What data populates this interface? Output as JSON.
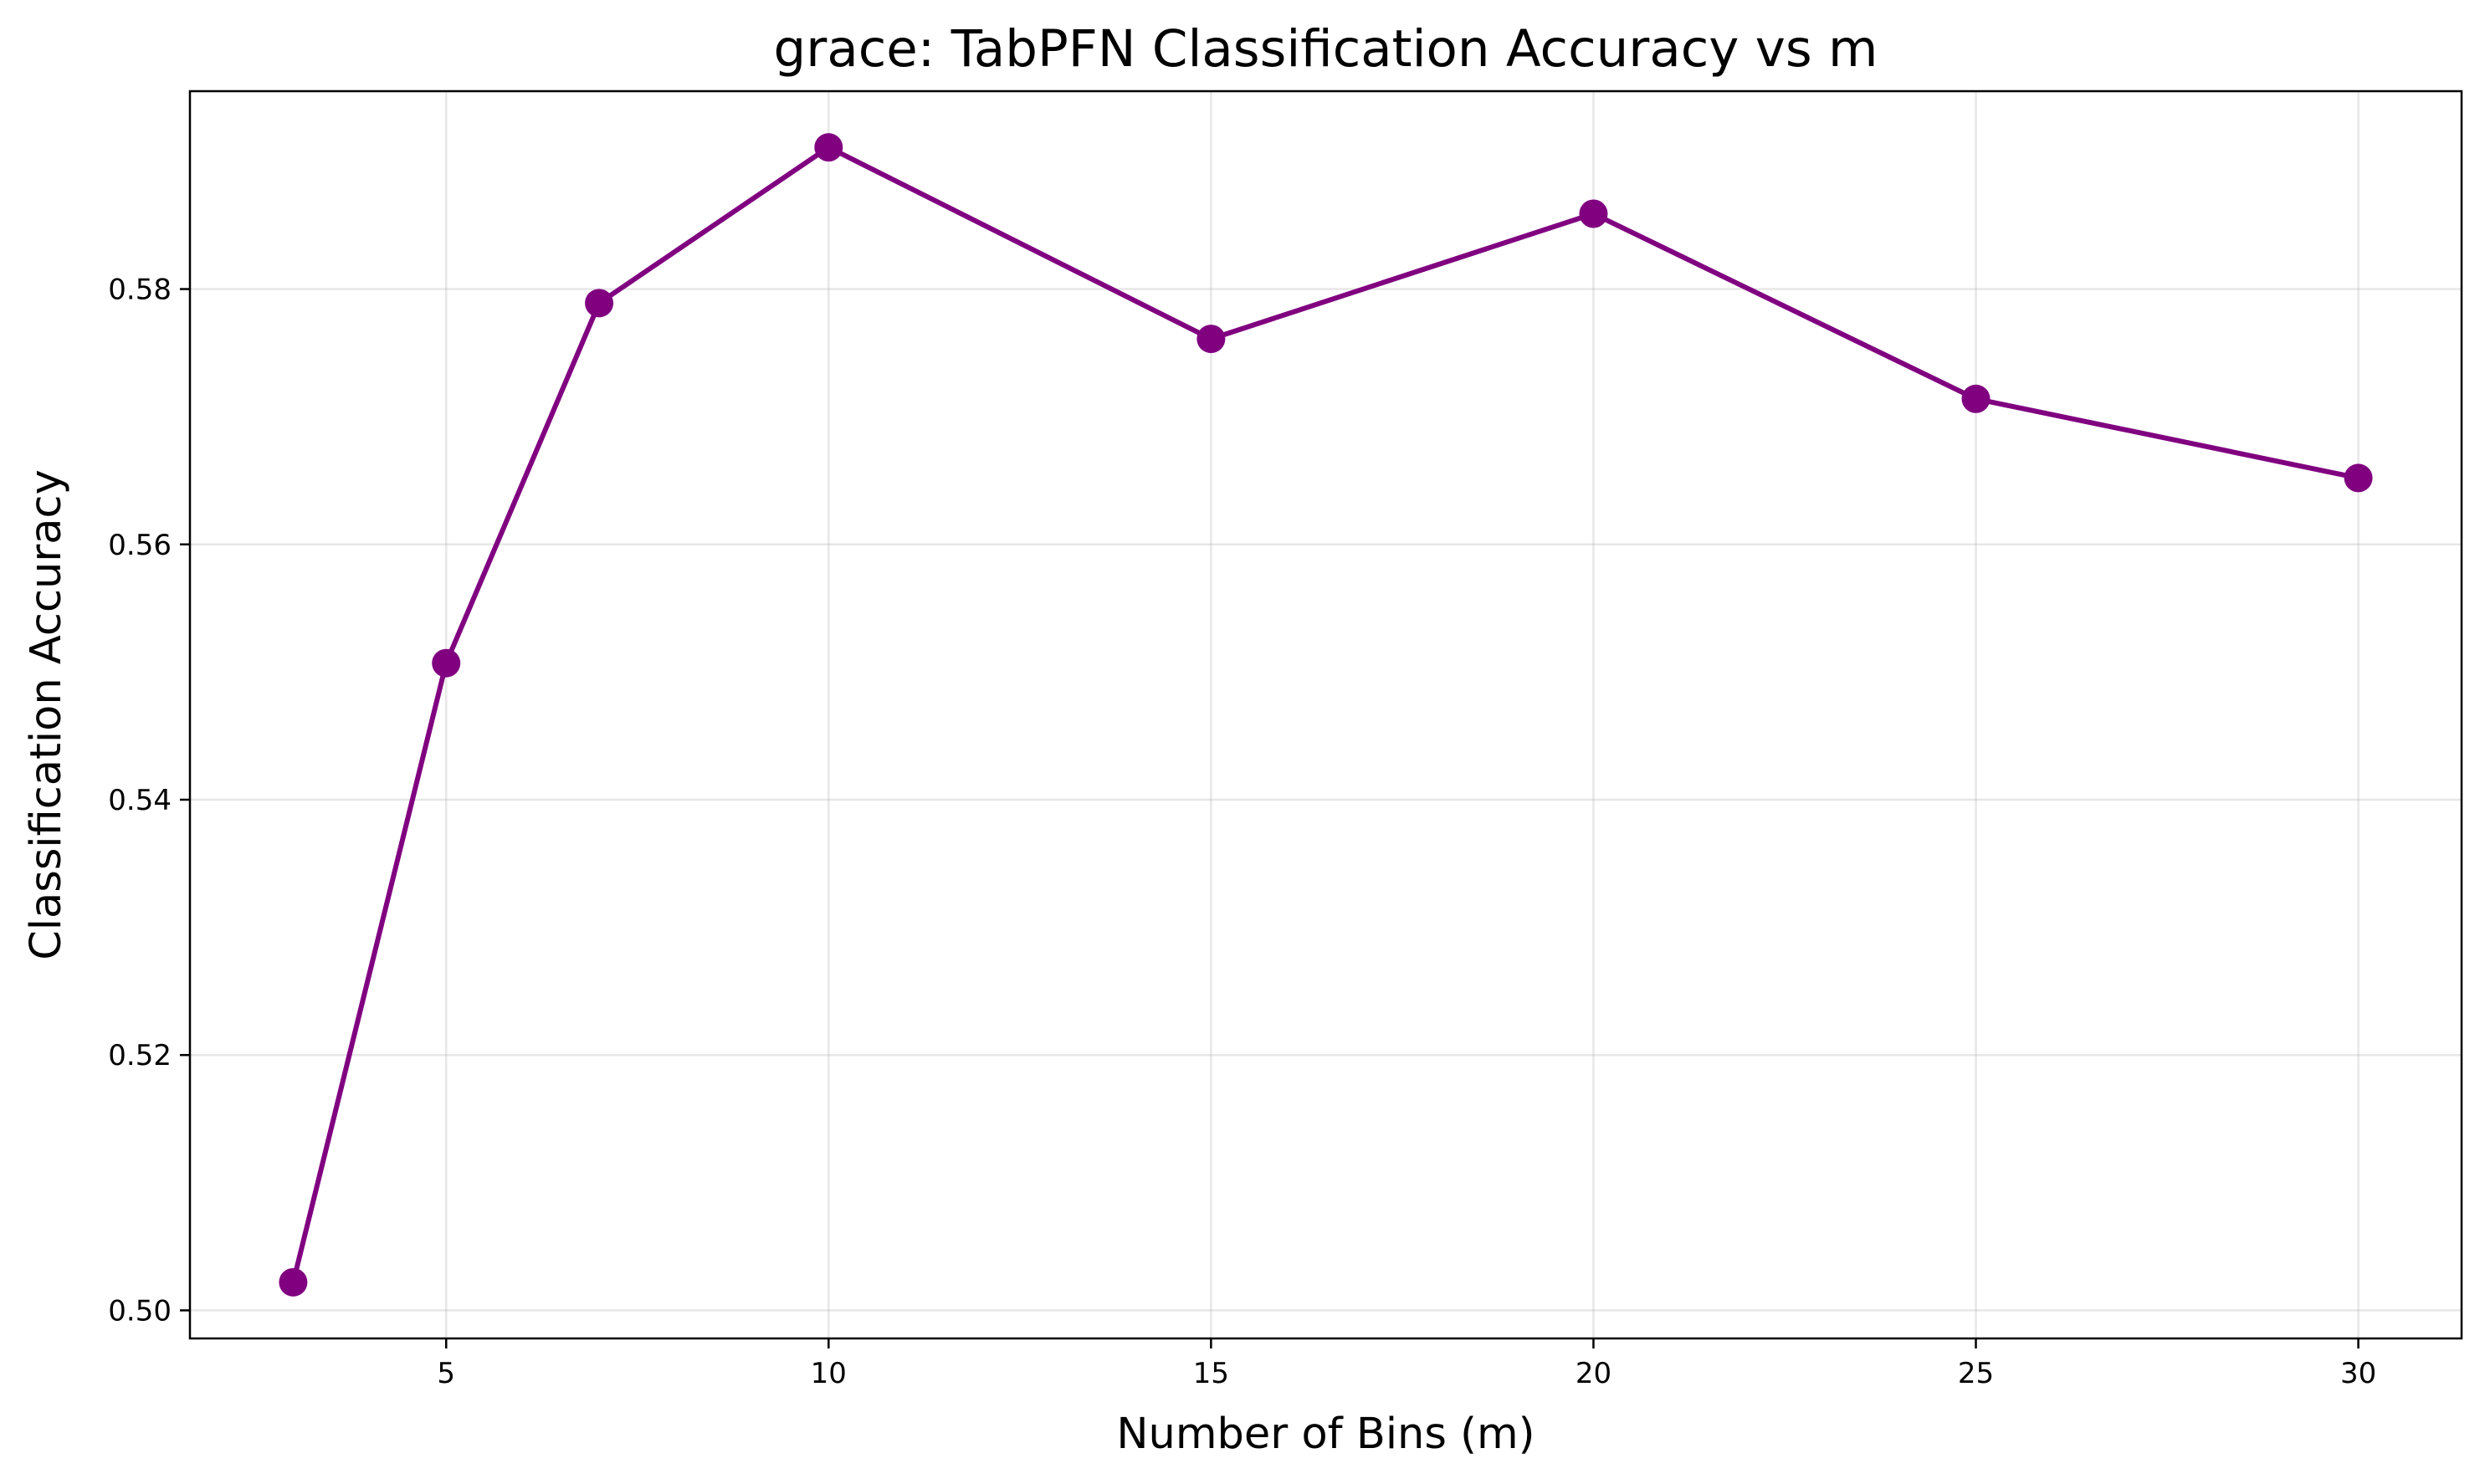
{
  "chart_data": {
    "type": "line",
    "title": "grace: TabPFN Classification Accuracy vs m",
    "xlabel": "Number of Bins (m)",
    "ylabel": "Classification Accuracy",
    "xlim": [
      1.65,
      31.35
    ],
    "ylim": [
      0.4978,
      0.5955
    ],
    "xticks": [
      5,
      10,
      15,
      20,
      25,
      30
    ],
    "yticks": [
      0.5,
      0.52,
      0.54,
      0.56,
      0.58
    ],
    "xtick_labels": [
      "5",
      "10",
      "15",
      "20",
      "25",
      "30"
    ],
    "ytick_labels": [
      "0.50",
      "0.52",
      "0.54",
      "0.56",
      "0.58"
    ],
    "grid": true,
    "legend": "none",
    "series": [
      {
        "color": "#800080",
        "marker": "circle",
        "x": [
          3,
          5,
          7,
          10,
          15,
          20,
          25,
          30
        ],
        "y": [
          0.5022,
          0.5507,
          0.5789,
          0.5911,
          0.5761,
          0.5859,
          0.5714,
          0.5652
        ]
      }
    ]
  }
}
